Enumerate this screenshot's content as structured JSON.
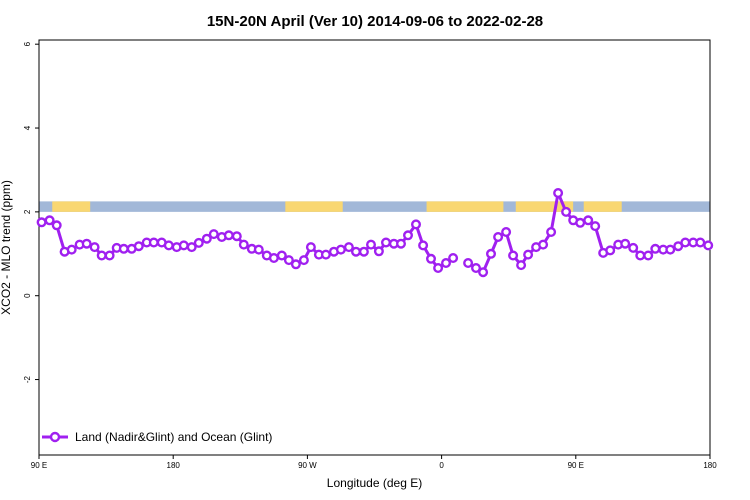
{
  "chart_data": {
    "type": "line",
    "title": "15N-20N April (Ver 10)   2014-09-06 to 2022-02-28",
    "xlabel": "Longitude (deg E)",
    "ylabel": "XCO2 - MLO trend (ppm)",
    "xlim": [
      0,
      76
    ],
    "ylim": [
      -3.8,
      6.1
    ],
    "x_ticks": [
      {
        "pos": 0,
        "label": "90 E"
      },
      {
        "pos": 15.2,
        "label": "180"
      },
      {
        "pos": 30.4,
        "label": "90 W"
      },
      {
        "pos": 45.6,
        "label": "0"
      },
      {
        "pos": 60.8,
        "label": "90 E"
      },
      {
        "pos": 76,
        "label": "180"
      }
    ],
    "y_ticks": [
      {
        "pos": -2,
        "label": "-2"
      },
      {
        "pos": 0,
        "label": "0"
      },
      {
        "pos": 2,
        "label": "2"
      },
      {
        "pos": 4,
        "label": "4"
      },
      {
        "pos": 6,
        "label": "6"
      }
    ],
    "land_ocean_band": {
      "ymin": 2.0,
      "ymax": 2.25,
      "ocean_color": "#a2b8d8",
      "land_color": "#f9d772",
      "land_segments": [
        [
          1.5,
          5.8
        ],
        [
          27.9,
          34.4
        ],
        [
          43.9,
          52.6
        ],
        [
          54.0,
          60.5
        ],
        [
          61.7,
          66.0
        ]
      ]
    },
    "series": [
      {
        "name": "Land (Nadir&Glint) and Ocean (Glint)",
        "color": "#a020f0",
        "points": [
          [
            0.3,
            1.75
          ],
          [
            1.2,
            1.8
          ],
          [
            2.0,
            1.68
          ],
          [
            2.9,
            1.05
          ],
          [
            3.7,
            1.1
          ],
          [
            4.6,
            1.22
          ],
          [
            5.4,
            1.24
          ],
          [
            6.3,
            1.16
          ],
          [
            7.1,
            0.96
          ],
          [
            8.0,
            0.96
          ],
          [
            8.8,
            1.14
          ],
          [
            9.6,
            1.12
          ],
          [
            10.5,
            1.12
          ],
          [
            11.3,
            1.18
          ],
          [
            12.2,
            1.27
          ],
          [
            13.0,
            1.27
          ],
          [
            13.9,
            1.27
          ],
          [
            14.7,
            1.2
          ],
          [
            15.6,
            1.16
          ],
          [
            16.4,
            1.2
          ],
          [
            17.3,
            1.16
          ],
          [
            18.1,
            1.26
          ],
          [
            19.0,
            1.36
          ],
          [
            19.8,
            1.47
          ],
          [
            20.7,
            1.4
          ],
          [
            21.5,
            1.44
          ],
          [
            22.4,
            1.42
          ],
          [
            23.2,
            1.22
          ],
          [
            24.1,
            1.12
          ],
          [
            24.9,
            1.1
          ],
          [
            25.8,
            0.96
          ],
          [
            26.6,
            0.9
          ],
          [
            27.5,
            0.96
          ],
          [
            28.3,
            0.85
          ],
          [
            29.1,
            0.75
          ],
          [
            30.0,
            0.85
          ],
          [
            30.8,
            1.16
          ],
          [
            31.7,
            0.98
          ],
          [
            32.5,
            0.98
          ],
          [
            33.4,
            1.05
          ],
          [
            34.2,
            1.1
          ],
          [
            35.1,
            1.16
          ],
          [
            35.9,
            1.05
          ],
          [
            36.8,
            1.05
          ],
          [
            37.6,
            1.22
          ],
          [
            38.5,
            1.06
          ],
          [
            39.3,
            1.27
          ],
          [
            40.2,
            1.24
          ],
          [
            41.0,
            1.24
          ],
          [
            41.8,
            1.44
          ],
          [
            42.7,
            1.7
          ],
          [
            43.5,
            1.2
          ],
          [
            44.4,
            0.88
          ],
          [
            45.2,
            0.66
          ],
          [
            46.1,
            0.78
          ],
          [
            46.9,
            0.9
          ],
          [
            null,
            null
          ],
          [
            48.6,
            0.78
          ],
          [
            49.5,
            0.66
          ],
          [
            50.3,
            0.56
          ],
          [
            51.2,
            1.0
          ],
          [
            52.0,
            1.4
          ],
          [
            52.9,
            1.52
          ],
          [
            53.7,
            0.96
          ],
          [
            54.6,
            0.73
          ],
          [
            55.4,
            0.98
          ],
          [
            56.3,
            1.16
          ],
          [
            57.1,
            1.22
          ],
          [
            58.0,
            1.52
          ],
          [
            58.8,
            2.45
          ],
          [
            59.7,
            2.0
          ],
          [
            60.5,
            1.8
          ],
          [
            61.3,
            1.74
          ],
          [
            62.2,
            1.8
          ],
          [
            63.0,
            1.66
          ],
          [
            63.9,
            1.02
          ],
          [
            64.7,
            1.08
          ],
          [
            65.6,
            1.22
          ],
          [
            66.4,
            1.24
          ],
          [
            67.3,
            1.14
          ],
          [
            68.1,
            0.96
          ],
          [
            69.0,
            0.96
          ],
          [
            69.8,
            1.12
          ],
          [
            70.7,
            1.1
          ],
          [
            71.5,
            1.1
          ],
          [
            72.4,
            1.18
          ],
          [
            73.2,
            1.27
          ],
          [
            74.1,
            1.27
          ],
          [
            74.9,
            1.27
          ],
          [
            75.8,
            1.2
          ]
        ]
      }
    ],
    "legend": {
      "placement": "bottom-left"
    }
  }
}
